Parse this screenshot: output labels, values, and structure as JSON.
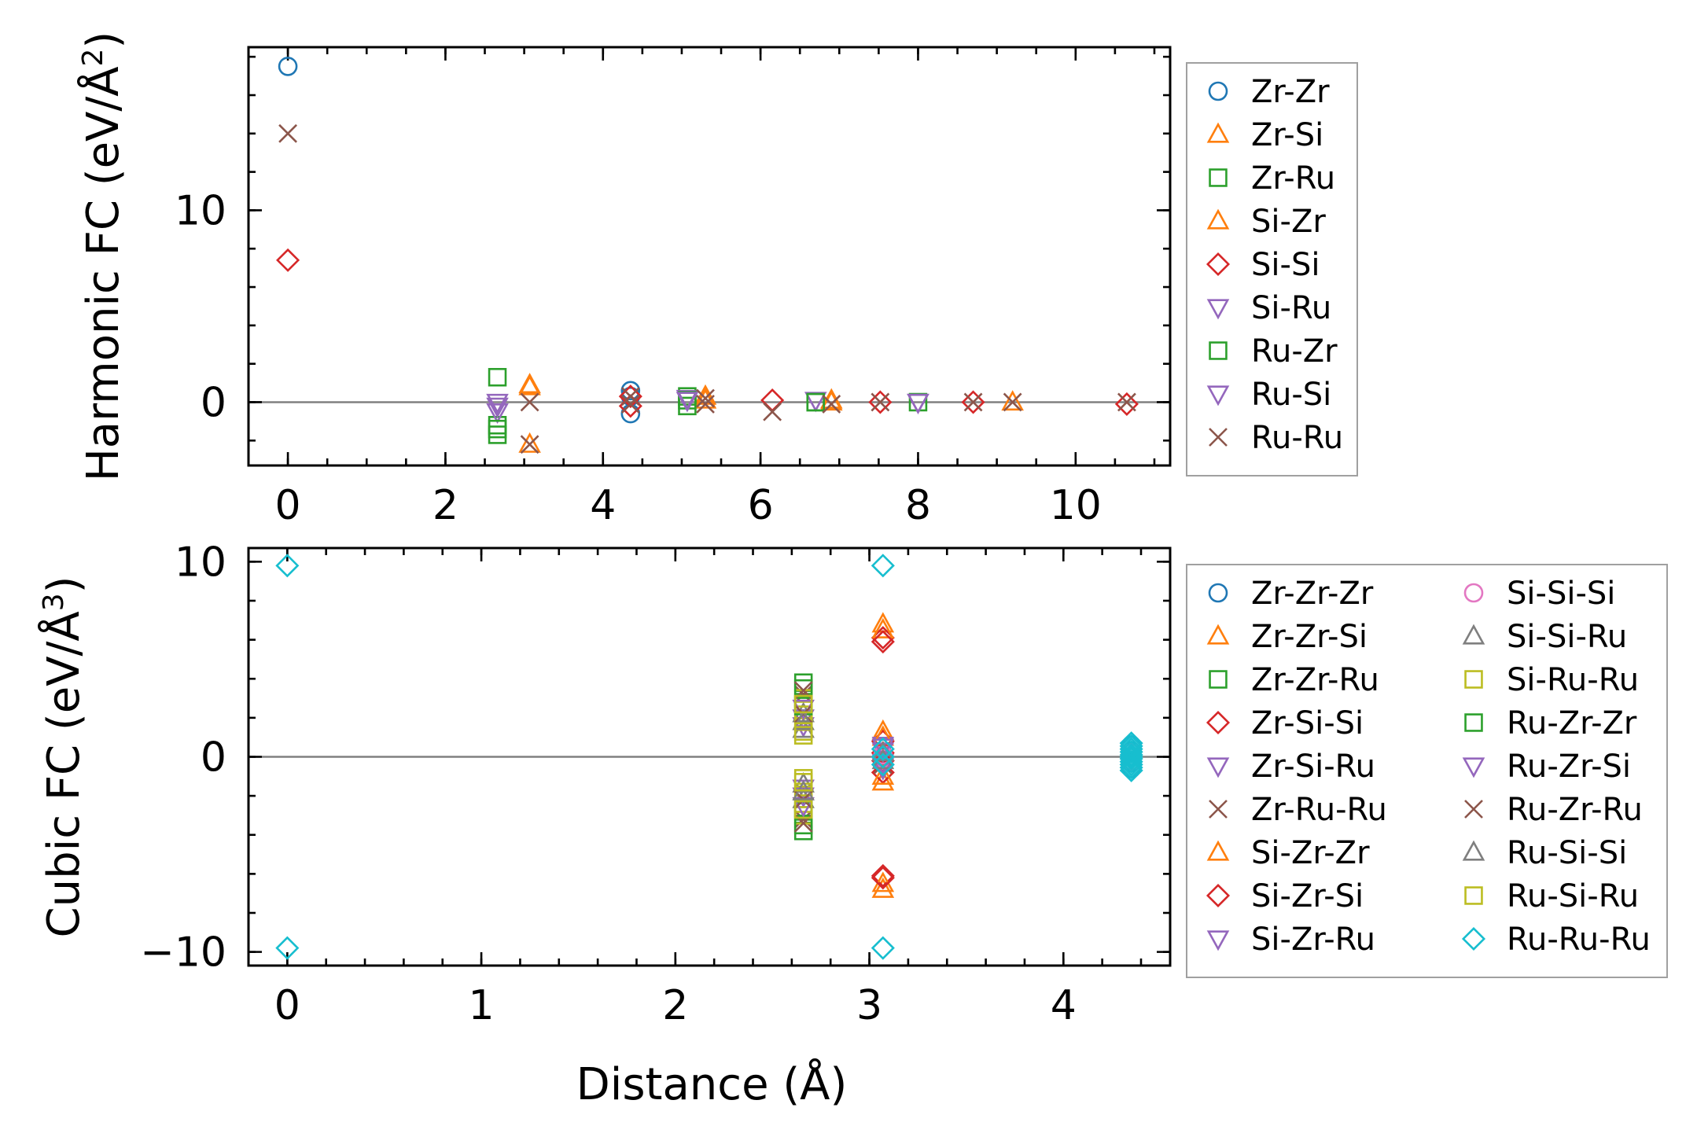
{
  "figure": {
    "xlabel": "Distance (Å)"
  },
  "chart_data": [
    {
      "type": "scatter",
      "ylabel": "Harmonic FC (eV/Å²)",
      "ylabel_main": "Harmonic FC (eV/Å",
      "ylabel_sup": "2",
      "ylabel_end": ")",
      "xlim": [
        -0.5,
        11.2
      ],
      "ylim": [
        -3.3,
        18.5
      ],
      "xticks": [
        0,
        2,
        4,
        6,
        8,
        10
      ],
      "xtick_labels": [
        "0",
        "2",
        "4",
        "6",
        "8",
        "10"
      ],
      "yticks": [
        0,
        10
      ],
      "ytick_labels": [
        "0",
        "10"
      ],
      "zero_line": true,
      "legend": {
        "location": "right, outside",
        "columns": 1
      },
      "series": [
        {
          "name": "Zr-Zr",
          "marker": "o",
          "color": "#1f77b4",
          "points": [
            [
              0,
              17.5
            ],
            [
              4.35,
              0.6
            ],
            [
              4.35,
              -0.6
            ],
            [
              4.35,
              0.3
            ]
          ]
        },
        {
          "name": "Zr-Si",
          "marker": "^",
          "color": "#ff7f0e",
          "points": [
            [
              3.07,
              0.9
            ],
            [
              3.07,
              -2.2
            ],
            [
              5.3,
              0.3
            ],
            [
              6.9,
              0.1
            ]
          ]
        },
        {
          "name": "Zr-Ru",
          "marker": "s",
          "color": "#2ca02c",
          "points": [
            [
              2.66,
              1.3
            ],
            [
              2.66,
              -1.2
            ],
            [
              2.66,
              -1.7
            ],
            [
              5.07,
              0.3
            ],
            [
              5.07,
              -0.2
            ],
            [
              6.7,
              0.0
            ],
            [
              8.0,
              0.0
            ]
          ]
        },
        {
          "name": "Si-Zr",
          "marker": "^",
          "color": "#ff7f0e",
          "points": [
            [
              3.07,
              0.8
            ],
            [
              5.3,
              0.1
            ],
            [
              6.9,
              0.0
            ],
            [
              9.2,
              0.0
            ]
          ]
        },
        {
          "name": "Si-Si",
          "marker": "D",
          "color": "#d62728",
          "points": [
            [
              0,
              7.4
            ],
            [
              4.35,
              0.3
            ],
            [
              4.35,
              -0.2
            ],
            [
              6.15,
              0.1
            ],
            [
              7.52,
              0.0
            ],
            [
              8.7,
              0.0
            ],
            [
              10.65,
              -0.1
            ]
          ]
        },
        {
          "name": "Si-Ru",
          "marker": "v",
          "color": "#9467bd",
          "points": [
            [
              2.66,
              0.0
            ],
            [
              2.66,
              -0.5
            ],
            [
              5.07,
              0.2
            ],
            [
              6.7,
              0.1
            ],
            [
              8.0,
              0.0
            ]
          ]
        },
        {
          "name": "Ru-Zr",
          "marker": "s",
          "color": "#2ca02c",
          "points": [
            [
              2.66,
              -1.4
            ],
            [
              5.07,
              0.1
            ],
            [
              6.7,
              0.0
            ]
          ]
        },
        {
          "name": "Ru-Si",
          "marker": "v",
          "color": "#9467bd",
          "points": [
            [
              2.66,
              -0.2
            ],
            [
              5.07,
              0.1
            ],
            [
              8.0,
              0.0
            ]
          ]
        },
        {
          "name": "Ru-Ru",
          "marker": "x",
          "color": "#8c564b",
          "points": [
            [
              0,
              14.0
            ],
            [
              3.07,
              0.0
            ],
            [
              3.07,
              -2.2
            ],
            [
              4.35,
              0.3
            ],
            [
              4.35,
              -0.1
            ],
            [
              5.3,
              -0.1
            ],
            [
              5.3,
              0.2
            ],
            [
              6.15,
              -0.5
            ],
            [
              6.9,
              -0.1
            ],
            [
              7.52,
              0.0
            ],
            [
              8.7,
              0.0
            ],
            [
              9.2,
              0.0
            ],
            [
              10.65,
              0.0
            ]
          ]
        }
      ]
    },
    {
      "type": "scatter",
      "ylabel": "Cubic FC (eV/Å³)",
      "ylabel_main": "Cubic FC (eV/Å",
      "ylabel_sup": "3",
      "ylabel_end": ")",
      "xlim": [
        -0.2,
        4.55
      ],
      "ylim": [
        -10.7,
        10.7
      ],
      "xticks": [
        0,
        1,
        2,
        3,
        4
      ],
      "xtick_labels": [
        "0",
        "1",
        "2",
        "3",
        "4"
      ],
      "yticks": [
        -10,
        0,
        10
      ],
      "ytick_labels": [
        "−10",
        "0",
        "10"
      ],
      "zero_line": true,
      "legend": {
        "location": "right, outside",
        "columns": 2
      },
      "series": [
        {
          "name": "Zr-Zr-Zr",
          "marker": "o",
          "color": "#1f77b4",
          "points": [
            [
              4.35,
              0.6
            ],
            [
              4.35,
              0.3
            ],
            [
              4.35,
              0.0
            ],
            [
              4.35,
              -0.3
            ],
            [
              4.35,
              -0.6
            ]
          ]
        },
        {
          "name": "Zr-Zr-Si",
          "marker": "^",
          "color": "#ff7f0e",
          "points": [
            [
              3.07,
              1.3
            ],
            [
              3.07,
              -1.3
            ],
            [
              3.07,
              6.8
            ],
            [
              3.07,
              -6.8
            ]
          ]
        },
        {
          "name": "Zr-Zr-Ru",
          "marker": "s",
          "color": "#2ca02c",
          "points": [
            [
              2.66,
              3.8
            ],
            [
              2.66,
              2.8
            ],
            [
              2.66,
              -2.8
            ],
            [
              2.66,
              -3.8
            ]
          ]
        },
        {
          "name": "Zr-Si-Si",
          "marker": "D",
          "color": "#d62728",
          "points": [
            [
              3.07,
              6.1
            ],
            [
              3.07,
              -6.1
            ],
            [
              3.07,
              0.8
            ],
            [
              3.07,
              -0.8
            ]
          ]
        },
        {
          "name": "Zr-Si-Ru",
          "marker": "v",
          "color": "#9467bd",
          "points": [
            [
              3.07,
              0.6
            ],
            [
              3.07,
              -0.6
            ],
            [
              2.66,
              2.0
            ],
            [
              2.66,
              -2.0
            ]
          ]
        },
        {
          "name": "Zr-Ru-Ru",
          "marker": "x",
          "color": "#8c564b",
          "points": [
            [
              2.66,
              3.2
            ],
            [
              2.66,
              -3.2
            ],
            [
              3.07,
              0.4
            ],
            [
              3.07,
              -0.4
            ]
          ]
        },
        {
          "name": "Si-Zr-Zr",
          "marker": "^",
          "color": "#ff7f0e",
          "points": [
            [
              3.07,
              1.0
            ],
            [
              3.07,
              -1.0
            ],
            [
              3.07,
              6.5
            ],
            [
              3.07,
              -6.5
            ]
          ]
        },
        {
          "name": "Si-Zr-Si",
          "marker": "D",
          "color": "#d62728",
          "points": [
            [
              3.07,
              0.2
            ],
            [
              3.07,
              -0.2
            ],
            [
              3.07,
              5.9
            ],
            [
              3.07,
              -6.2
            ]
          ]
        },
        {
          "name": "Si-Zr-Ru",
          "marker": "v",
          "color": "#9467bd",
          "points": [
            [
              3.07,
              0.3
            ],
            [
              3.07,
              -0.3
            ],
            [
              2.66,
              1.6
            ],
            [
              2.66,
              -1.6
            ]
          ]
        },
        {
          "name": "Si-Si-Si",
          "marker": "o",
          "color": "#e377c2",
          "points": [
            [
              3.07,
              0.1
            ],
            [
              3.07,
              -0.1
            ],
            [
              4.35,
              0.2
            ],
            [
              4.35,
              -0.2
            ]
          ]
        },
        {
          "name": "Si-Si-Ru",
          "marker": "^",
          "color": "#7f7f7f",
          "points": [
            [
              2.66,
              2.2
            ],
            [
              2.66,
              1.4
            ],
            [
              2.66,
              -1.4
            ],
            [
              2.66,
              -2.2
            ]
          ]
        },
        {
          "name": "Si-Ru-Ru",
          "marker": "s",
          "color": "#bcbd22",
          "points": [
            [
              2.66,
              3.0
            ],
            [
              2.66,
              2.4
            ],
            [
              2.66,
              1.8
            ],
            [
              2.66,
              1.1
            ],
            [
              2.66,
              -1.1
            ],
            [
              2.66,
              -1.8
            ],
            [
              2.66,
              -2.4
            ],
            [
              2.66,
              -3.0
            ]
          ]
        },
        {
          "name": "Ru-Zr-Zr",
          "marker": "s",
          "color": "#2ca02c",
          "points": [
            [
              2.66,
              3.5
            ],
            [
              2.66,
              -3.5
            ],
            [
              2.66,
              2.6
            ],
            [
              2.66,
              -2.6
            ]
          ]
        },
        {
          "name": "Ru-Zr-Si",
          "marker": "v",
          "color": "#9467bd",
          "points": [
            [
              2.66,
              2.5
            ],
            [
              2.66,
              -2.5
            ],
            [
              3.07,
              0.5
            ],
            [
              3.07,
              -0.5
            ]
          ]
        },
        {
          "name": "Ru-Zr-Ru",
          "marker": "x",
          "color": "#8c564b",
          "points": [
            [
              2.66,
              3.4
            ],
            [
              2.66,
              -3.4
            ],
            [
              2.66,
              2.2
            ],
            [
              2.66,
              -2.2
            ]
          ]
        },
        {
          "name": "Ru-Si-Si",
          "marker": "^",
          "color": "#7f7f7f",
          "points": [
            [
              2.66,
              1.8
            ],
            [
              2.66,
              -1.8
            ],
            [
              3.07,
              0.2
            ],
            [
              3.07,
              -0.2
            ]
          ]
        },
        {
          "name": "Ru-Si-Ru",
          "marker": "s",
          "color": "#bcbd22",
          "points": [
            [
              2.66,
              2.7
            ],
            [
              2.66,
              1.3
            ],
            [
              2.66,
              -1.3
            ],
            [
              2.66,
              -2.7
            ]
          ]
        },
        {
          "name": "Ru-Ru-Ru",
          "marker": "D",
          "color": "#17becf",
          "points": [
            [
              0,
              9.8
            ],
            [
              0,
              -9.8
            ],
            [
              3.07,
              9.8
            ],
            [
              3.07,
              -9.8
            ],
            [
              3.07,
              0.4
            ],
            [
              3.07,
              0.0
            ],
            [
              3.07,
              -0.4
            ],
            [
              4.35,
              0.7
            ],
            [
              4.35,
              0.55
            ],
            [
              4.35,
              0.4
            ],
            [
              4.35,
              0.25
            ],
            [
              4.35,
              0.1
            ],
            [
              4.35,
              0.0
            ],
            [
              4.35,
              -0.1
            ],
            [
              4.35,
              -0.25
            ],
            [
              4.35,
              -0.4
            ],
            [
              4.35,
              -0.55
            ],
            [
              4.35,
              -0.7
            ]
          ]
        }
      ]
    }
  ]
}
